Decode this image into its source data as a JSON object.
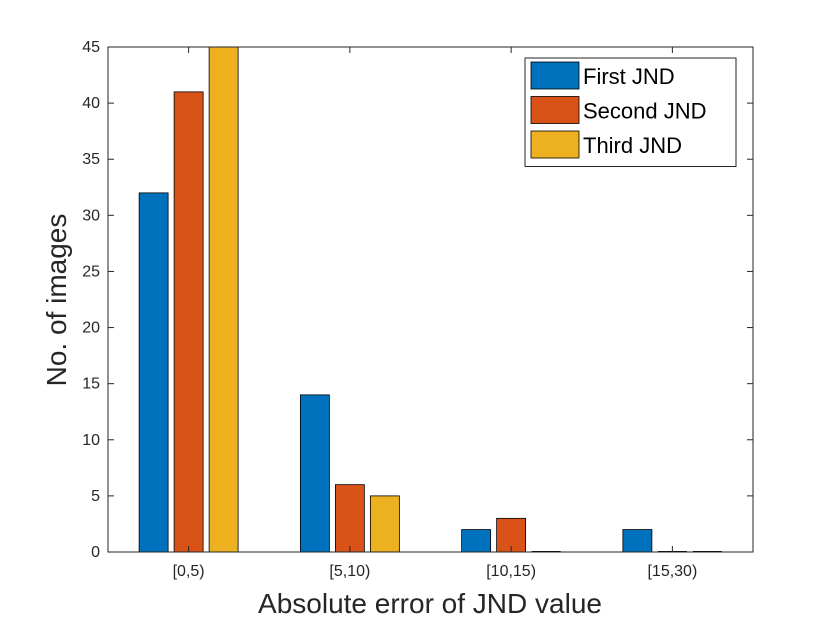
{
  "chart_data": {
    "type": "bar",
    "categories": [
      "[0,5)",
      "[5,10)",
      "[10,15)",
      "[15,30)"
    ],
    "series": [
      {
        "name": "First JND",
        "values": [
          32,
          14,
          2,
          2
        ],
        "color": "#0072BD"
      },
      {
        "name": "Second JND",
        "values": [
          41,
          6,
          3,
          0
        ],
        "color": "#D95319"
      },
      {
        "name": "Third JND",
        "values": [
          45,
          5,
          0,
          0
        ],
        "color": "#EDB120"
      }
    ],
    "xlabel": "Absolute error of JND value",
    "ylabel": "No. of images",
    "ylim": [
      0,
      45
    ],
    "yticks": [
      "0",
      "5",
      "10",
      "15",
      "20",
      "25",
      "30",
      "35",
      "40",
      "45"
    ],
    "legend_position": "top-right",
    "grid": false
  }
}
